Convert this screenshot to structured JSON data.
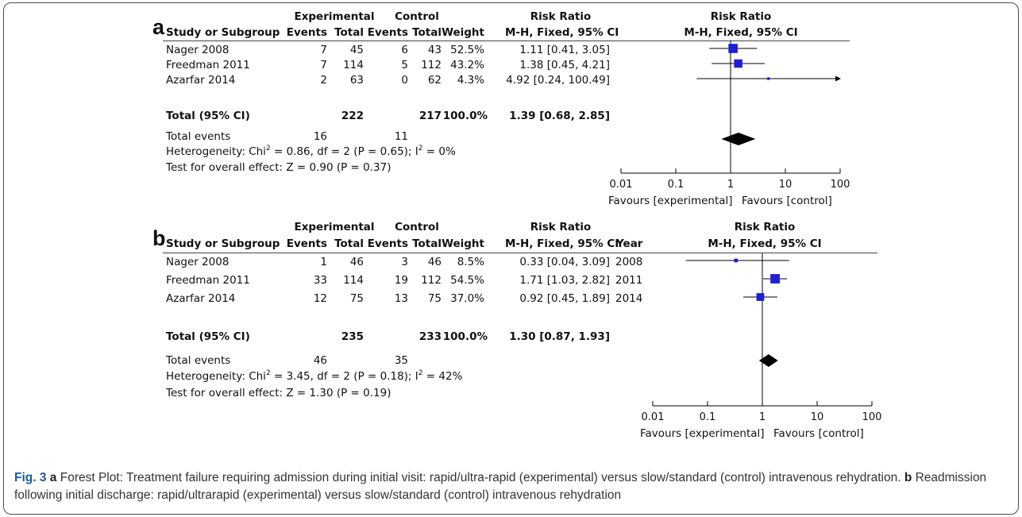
{
  "panels": [
    {
      "letter": "a",
      "headers": {
        "experimental": "Experimental",
        "control": "Control",
        "risk_ratio": "Risk Ratio",
        "plot_title": "Risk Ratio",
        "study": "Study or Subgroup",
        "events": "Events",
        "total": "Total",
        "events2": "Events",
        "total2": "Total",
        "weight": "Weight",
        "method": "M-H, Fixed, 95% CI",
        "plot_method": "M-H, Fixed, 95% CI"
      },
      "rows": [
        {
          "study": "Nager 2008",
          "exp_events": "7",
          "exp_total": "45",
          "ctl_events": "6",
          "ctl_total": "43",
          "weight": "52.5%",
          "rr": "1.11 [0.41, 3.05]"
        },
        {
          "study": "Freedman 2011",
          "exp_events": "7",
          "exp_total": "114",
          "ctl_events": "5",
          "ctl_total": "112",
          "weight": "43.2%",
          "rr": "1.38 [0.45, 4.21]"
        },
        {
          "study": "Azarfar 2014",
          "exp_events": "2",
          "exp_total": "63",
          "ctl_events": "0",
          "ctl_total": "62",
          "weight": "4.3%",
          "rr": "4.92 [0.24, 100.49]"
        }
      ],
      "total_row": {
        "label": "Total (95% CI)",
        "exp_total": "222",
        "ctl_total": "217",
        "weight": "100.0%",
        "rr": "1.39 [0.68, 2.85]"
      },
      "events_row": {
        "label": "Total events",
        "exp_events": "16",
        "ctl_events": "11"
      },
      "heterogeneity": {
        "prefix": "Heterogeneity: Chi",
        "sup1": "2",
        "mid": " = 0.86, df = 2 (P = 0.65); I",
        "sup2": "2",
        "suffix": " = 0%"
      },
      "overall_effect": "Test for overall effect: Z = 0.90 (P = 0.37)",
      "axis_ticks": [
        "0.01",
        "0.1",
        "1",
        "10",
        "100"
      ],
      "favours_left": "Favours [experimental]",
      "favours_right": "Favours [control]"
    },
    {
      "letter": "b",
      "headers": {
        "experimental": "Experimental",
        "control": "Control",
        "risk_ratio": "Risk Ratio",
        "plot_title": "Risk Ratio",
        "study": "Study or Subgroup",
        "events": "Events",
        "total": "Total",
        "events2": "Events",
        "total2": "Total",
        "weight": "Weight",
        "method": "M-H, Fixed, 95% CI",
        "year": "Year",
        "plot_method": "M-H, Fixed, 95% CI"
      },
      "rows": [
        {
          "study": "Nager 2008",
          "exp_events": "1",
          "exp_total": "46",
          "ctl_events": "3",
          "ctl_total": "46",
          "weight": "8.5%",
          "rr": "0.33 [0.04, 3.09]",
          "year": "2008"
        },
        {
          "study": "Freedman 2011",
          "exp_events": "33",
          "exp_total": "114",
          "ctl_events": "19",
          "ctl_total": "112",
          "weight": "54.5%",
          "rr": "1.71 [1.03, 2.82]",
          "year": "2011"
        },
        {
          "study": "Azarfar 2014",
          "exp_events": "12",
          "exp_total": "75",
          "ctl_events": "13",
          "ctl_total": "75",
          "weight": "37.0%",
          "rr": "0.92 [0.45, 1.89]",
          "year": "2014"
        }
      ],
      "total_row": {
        "label": "Total (95% CI)",
        "exp_total": "235",
        "ctl_total": "233",
        "weight": "100.0%",
        "rr": "1.30 [0.87, 1.93]"
      },
      "events_row": {
        "label": "Total events",
        "exp_events": "46",
        "ctl_events": "35"
      },
      "heterogeneity": {
        "prefix": "Heterogeneity: Chi",
        "sup1": "2",
        "mid": " = 3.45, df = 2 (P = 0.18); I",
        "sup2": "2",
        "suffix": " = 42%"
      },
      "overall_effect": "Test for overall effect: Z = 1.30 (P = 0.19)",
      "axis_ticks": [
        "0.01",
        "0.1",
        "1",
        "10",
        "100"
      ],
      "favours_left": "Favours [experimental]",
      "favours_right": "Favours [control]"
    }
  ],
  "caption": {
    "fig_label": "Fig. 3",
    "a_label": "a",
    "a_text": " Forest Plot: Treatment failure requiring admission during initial visit: rapid/ultra-rapid (experimental) versus slow/standard (control) intravenous rehydration. ",
    "b_label": "b",
    "b_text": " Readmission following initial discharge: rapid/ultrarapid (experimental) versus slow/standard (control) intravenous rehydration"
  },
  "chart_data": [
    {
      "type": "forest",
      "scale": "log",
      "xlim": [
        0.01,
        100
      ],
      "xticks": [
        0.01,
        0.1,
        1,
        10,
        100
      ],
      "x_reference": 1,
      "series": [
        {
          "name": "Nager 2008",
          "estimate": 1.11,
          "ci": [
            0.41,
            3.05
          ],
          "weight": 52.5
        },
        {
          "name": "Freedman 2011",
          "estimate": 1.38,
          "ci": [
            0.45,
            4.21
          ],
          "weight": 43.2
        },
        {
          "name": "Azarfar 2014",
          "estimate": 4.92,
          "ci": [
            0.24,
            100.49
          ],
          "weight": 4.3
        }
      ],
      "pooled": {
        "estimate": 1.39,
        "ci": [
          0.68,
          2.85
        ]
      }
    },
    {
      "type": "forest",
      "scale": "log",
      "xlim": [
        0.01,
        100
      ],
      "xticks": [
        0.01,
        0.1,
        1,
        10,
        100
      ],
      "x_reference": 1,
      "series": [
        {
          "name": "Nager 2008",
          "estimate": 0.33,
          "ci": [
            0.04,
            3.09
          ],
          "weight": 8.5
        },
        {
          "name": "Freedman 2011",
          "estimate": 1.71,
          "ci": [
            1.03,
            2.82
          ],
          "weight": 54.5
        },
        {
          "name": "Azarfar 2014",
          "estimate": 0.92,
          "ci": [
            0.45,
            1.89
          ],
          "weight": 37.0
        }
      ],
      "pooled": {
        "estimate": 1.3,
        "ci": [
          0.87,
          1.93
        ]
      }
    }
  ],
  "colors": {
    "square": "#1f1fd6",
    "diamond": "#000000",
    "caption_label": "#1a5a96"
  }
}
